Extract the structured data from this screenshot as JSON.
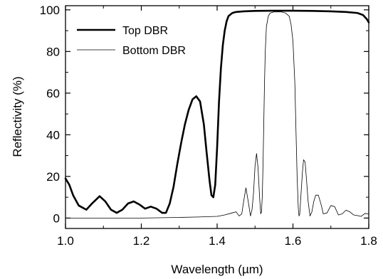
{
  "chart_data": {
    "type": "line",
    "xlabel": "Wavelength (µm)",
    "ylabel": "Reflectivity (%)",
    "xlim": [
      1.0,
      1.8
    ],
    "ylim": [
      -5,
      102
    ],
    "x_ticks": [
      1.0,
      1.2,
      1.4,
      1.6,
      1.8
    ],
    "x_tick_labels": [
      "1.0",
      "1.2",
      "1.4",
      "1.6",
      "1.8"
    ],
    "y_ticks": [
      0,
      20,
      40,
      60,
      80,
      100
    ],
    "y_tick_labels": [
      "0",
      "20",
      "40",
      "60",
      "80",
      "100"
    ],
    "grid": false,
    "legend_position": "top-left",
    "series": [
      {
        "name": "Top DBR",
        "color": "#000000",
        "x": [
          1.0,
          1.01,
          1.02,
          1.035,
          1.055,
          1.07,
          1.09,
          1.105,
          1.12,
          1.135,
          1.15,
          1.165,
          1.18,
          1.195,
          1.21,
          1.225,
          1.24,
          1.255,
          1.265,
          1.275,
          1.285,
          1.295,
          1.305,
          1.315,
          1.325,
          1.335,
          1.345,
          1.355,
          1.365,
          1.372,
          1.38,
          1.385,
          1.39,
          1.395,
          1.4,
          1.405,
          1.41,
          1.415,
          1.42,
          1.425,
          1.43,
          1.44,
          1.45,
          1.47,
          1.5,
          1.55,
          1.6,
          1.65,
          1.7,
          1.74,
          1.77,
          1.785,
          1.795,
          1.8
        ],
        "y": [
          19,
          16,
          11,
          6,
          4,
          7,
          10.5,
          8,
          4,
          2.5,
          4,
          7,
          8,
          6.5,
          4.5,
          5.5,
          4.5,
          2.5,
          2.5,
          7,
          15,
          26,
          36,
          45,
          52,
          57,
          58.5,
          56,
          45,
          32,
          18,
          11,
          10,
          16,
          34,
          56,
          72,
          83,
          90,
          94.5,
          97,
          98.5,
          99,
          99.3,
          99.5,
          99.6,
          99.6,
          99.5,
          99.3,
          99,
          98.5,
          97.5,
          95.5,
          94
        ]
      },
      {
        "name": "Bottom DBR",
        "color": "#000000",
        "x": [
          1.0,
          1.1,
          1.2,
          1.3,
          1.35,
          1.4,
          1.42,
          1.44,
          1.45,
          1.458,
          1.465,
          1.47,
          1.476,
          1.482,
          1.488,
          1.492,
          1.496,
          1.5,
          1.504,
          1.508,
          1.512,
          1.515,
          1.517,
          1.519,
          1.521,
          1.523,
          1.525,
          1.527,
          1.53,
          1.535,
          1.54,
          1.55,
          1.56,
          1.57,
          1.58,
          1.59,
          1.595,
          1.6,
          1.605,
          1.608,
          1.611,
          1.614,
          1.616,
          1.618,
          1.62,
          1.625,
          1.628,
          1.632,
          1.636,
          1.64,
          1.645,
          1.65,
          1.655,
          1.66,
          1.667,
          1.675,
          1.68,
          1.69,
          1.7,
          1.71,
          1.72,
          1.73,
          1.74,
          1.75,
          1.76,
          1.77,
          1.78,
          1.79,
          1.8
        ],
        "y": [
          0,
          0,
          0,
          0.3,
          0.5,
          0.8,
          1.5,
          2.5,
          3,
          1,
          2,
          8,
          14.5,
          8,
          1,
          4,
          12,
          25,
          31,
          24,
          10,
          2,
          3,
          10,
          25,
          45,
          65,
          80,
          92,
          97,
          98.5,
          99,
          99,
          99,
          98.5,
          97,
          93,
          85,
          65,
          42,
          20,
          5,
          1,
          2,
          8,
          22,
          28,
          27,
          18,
          8,
          1,
          3,
          8,
          11,
          11,
          6,
          2,
          2.5,
          6,
          5.5,
          1.5,
          2,
          3.8,
          3,
          1.5,
          1.2,
          0.8,
          2.2,
          2
        ]
      }
    ]
  }
}
